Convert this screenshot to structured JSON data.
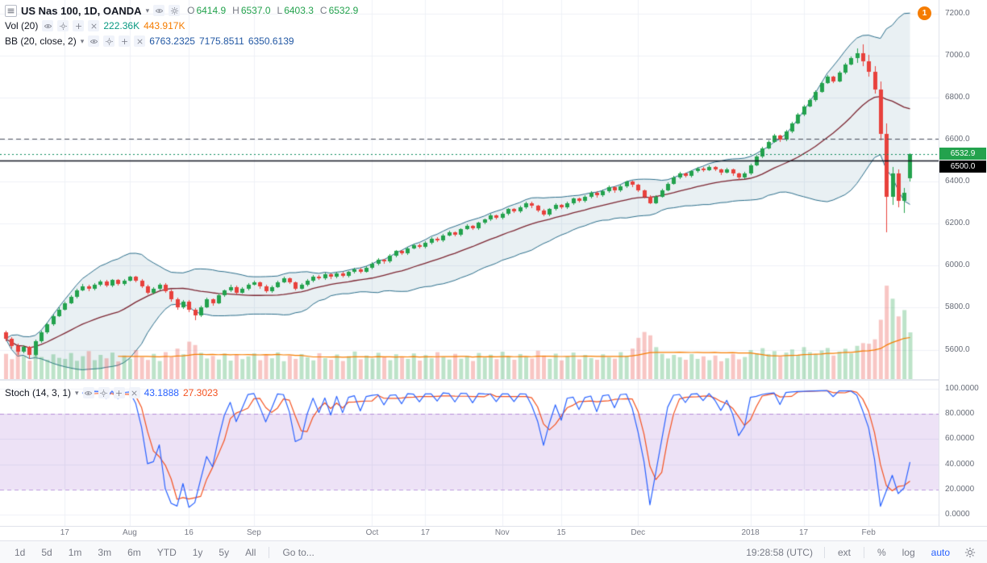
{
  "header": {
    "title": "US Nas 100, 1D, OANDA",
    "ohlc": {
      "o_label": "O",
      "o_value": "6414.9",
      "h_label": "H",
      "h_value": "6537.0",
      "l_label": "L",
      "l_value": "6403.3",
      "c_label": "C",
      "c_value": "6532.9"
    }
  },
  "volume_row": {
    "label": "Vol (20)",
    "value": "222.36K",
    "ma_value": "443.917K"
  },
  "bb_row": {
    "label": "BB (20, close, 2)",
    "basis": "6763.2325",
    "upper": "7175.8511",
    "lower": "6350.6139"
  },
  "stoch_row": {
    "label": "Stoch (14, 3, 1)",
    "k_value": "43.1888",
    "d_value": "27.3023"
  },
  "countdown_badge": "1",
  "price_axis": {
    "ticks": [
      "7200.0",
      "7000.0",
      "6800.0",
      "6600.0",
      "6400.0",
      "6200.0",
      "6000.0",
      "5800.0",
      "5600.0"
    ],
    "tick_values": [
      7200,
      7000,
      6800,
      6600,
      6400,
      6200,
      6000,
      5800,
      5600
    ],
    "last_price_badge": "6532.9",
    "price_line_badge": "6500.0"
  },
  "stoch_axis": {
    "ticks": [
      "100.0000",
      "80.0000",
      "60.0000",
      "40.0000",
      "20.0000",
      "0.0000"
    ],
    "tick_values": [
      100,
      80,
      60,
      40,
      20,
      0
    ]
  },
  "time_axis": {
    "labels": [
      {
        "text": "17",
        "i": 10
      },
      {
        "text": "Aug",
        "i": 21
      },
      {
        "text": "16",
        "i": 31
      },
      {
        "text": "Sep",
        "i": 42
      },
      {
        "text": "Oct",
        "i": 62
      },
      {
        "text": "17",
        "i": 71
      },
      {
        "text": "Nov",
        "i": 84
      },
      {
        "text": "15",
        "i": 94
      },
      {
        "text": "Dec",
        "i": 107
      },
      {
        "text": "2018",
        "i": 126
      },
      {
        "text": "17",
        "i": 135
      },
      {
        "text": "Feb",
        "i": 146
      }
    ]
  },
  "toolbar": {
    "ranges": [
      "1d",
      "5d",
      "1m",
      "3m",
      "6m",
      "YTD",
      "1y",
      "5y",
      "All"
    ],
    "goto": "Go to...",
    "clock": "19:28:58 (UTC)",
    "ext": "ext",
    "percent": "%",
    "log": "log",
    "auto": "auto"
  },
  "colors": {
    "up": "#23a24d",
    "down": "#e8413c",
    "up_fill": "rgba(35,162,77,0.30)",
    "down_fill": "rgba(232,65,60,0.30)",
    "bb_line": "#2a6d8a",
    "bb_fill": "rgba(42,109,138,0.10)",
    "bb_basis": "#7b2430",
    "bb_value": "#2157a3",
    "vol_value": "#089981",
    "vol_ma": "#f57c00",
    "stoch_k": "#2962ff",
    "stoch_d": "#f4511e",
    "stoch_band_fill": "rgba(143,77,196,0.16)",
    "stoch_band_line": "rgba(143,77,196,0.55)",
    "grid": "#eef1f6",
    "last_price_line": "#0b8a5a",
    "price_line_black": "#131722",
    "dashed_line_gray": "#50535e",
    "badge_black_bg": "#000000",
    "accent_blue": "#2962ff",
    "text_primary": "#131722",
    "text_secondary": "#787b86"
  },
  "chart_data": {
    "type": "candlestick",
    "title": "US Nas 100, 1D, OANDA",
    "symbol": "US Nas 100",
    "interval": "1D",
    "exchange": "OANDA",
    "ylim": [
      5460,
      7265
    ],
    "price_lines": {
      "black_line": 6500.0,
      "gray_dashed": 6605.0,
      "last_close": 6532.9
    },
    "ohlc": [
      [
        5682,
        5690,
        5640,
        5652
      ],
      [
        5652,
        5660,
        5606,
        5618
      ],
      [
        5618,
        5630,
        5578,
        5590
      ],
      [
        5590,
        5622,
        5582,
        5612
      ],
      [
        5612,
        5618,
        5558,
        5576
      ],
      [
        5576,
        5650,
        5570,
        5642
      ],
      [
        5642,
        5692,
        5636,
        5681
      ],
      [
        5681,
        5730,
        5675,
        5722
      ],
      [
        5722,
        5768,
        5716,
        5760
      ],
      [
        5760,
        5800,
        5752,
        5791
      ],
      [
        5791,
        5830,
        5786,
        5822
      ],
      [
        5822,
        5858,
        5816,
        5851
      ],
      [
        5851,
        5890,
        5845,
        5882
      ],
      [
        5882,
        5912,
        5876,
        5901
      ],
      [
        5901,
        5908,
        5878,
        5889
      ],
      [
        5889,
        5918,
        5883,
        5911
      ],
      [
        5911,
        5934,
        5905,
        5926
      ],
      [
        5926,
        5932,
        5896,
        5906
      ],
      [
        5906,
        5938,
        5900,
        5931
      ],
      [
        5931,
        5936,
        5906,
        5915
      ],
      [
        5915,
        5938,
        5909,
        5930
      ],
      [
        5930,
        5952,
        5924,
        5946
      ],
      [
        5946,
        5950,
        5920,
        5929
      ],
      [
        5929,
        5936,
        5892,
        5901
      ],
      [
        5901,
        5908,
        5860,
        5871
      ],
      [
        5871,
        5898,
        5864,
        5890
      ],
      [
        5890,
        5918,
        5884,
        5911
      ],
      [
        5911,
        5916,
        5870,
        5879
      ],
      [
        5879,
        5886,
        5830,
        5841
      ],
      [
        5841,
        5848,
        5790,
        5801
      ],
      [
        5801,
        5838,
        5795,
        5830
      ],
      [
        5830,
        5836,
        5780,
        5790
      ],
      [
        5790,
        5798,
        5742,
        5762
      ],
      [
        5762,
        5808,
        5756,
        5801
      ],
      [
        5801,
        5846,
        5795,
        5839
      ],
      [
        5839,
        5845,
        5810,
        5821
      ],
      [
        5821,
        5866,
        5815,
        5859
      ],
      [
        5859,
        5888,
        5853,
        5881
      ],
      [
        5881,
        5908,
        5875,
        5899
      ],
      [
        5899,
        5905,
        5862,
        5872
      ],
      [
        5872,
        5896,
        5866,
        5889
      ],
      [
        5889,
        5918,
        5883,
        5910
      ],
      [
        5910,
        5928,
        5904,
        5921
      ],
      [
        5921,
        5926,
        5892,
        5901
      ],
      [
        5901,
        5908,
        5870,
        5879
      ],
      [
        5879,
        5906,
        5873,
        5899
      ],
      [
        5899,
        5928,
        5893,
        5921
      ],
      [
        5921,
        5946,
        5915,
        5939
      ],
      [
        5939,
        5944,
        5912,
        5921
      ],
      [
        5921,
        5926,
        5882,
        5891
      ],
      [
        5891,
        5916,
        5885,
        5909
      ],
      [
        5909,
        5936,
        5903,
        5929
      ],
      [
        5929,
        5956,
        5923,
        5949
      ],
      [
        5949,
        5954,
        5930,
        5939
      ],
      [
        5939,
        5966,
        5933,
        5959
      ],
      [
        5959,
        5964,
        5936,
        5946
      ],
      [
        5946,
        5970,
        5940,
        5964
      ],
      [
        5964,
        5969,
        5942,
        5951
      ],
      [
        5951,
        5976,
        5945,
        5969
      ],
      [
        5969,
        5990,
        5963,
        5984
      ],
      [
        5984,
        5989,
        5962,
        5971
      ],
      [
        5971,
        5996,
        5965,
        5989
      ],
      [
        5989,
        6016,
        5983,
        6009
      ],
      [
        6009,
        6036,
        6003,
        6029
      ],
      [
        6029,
        6034,
        6010,
        6019
      ],
      [
        6019,
        6056,
        6013,
        6049
      ],
      [
        6049,
        6076,
        6043,
        6069
      ],
      [
        6069,
        6074,
        6050,
        6059
      ],
      [
        6059,
        6090,
        6053,
        6084
      ],
      [
        6084,
        6106,
        6078,
        6099
      ],
      [
        6099,
        6104,
        6080,
        6089
      ],
      [
        6089,
        6116,
        6083,
        6109
      ],
      [
        6109,
        6136,
        6103,
        6129
      ],
      [
        6129,
        6134,
        6110,
        6119
      ],
      [
        6119,
        6150,
        6113,
        6144
      ],
      [
        6144,
        6166,
        6138,
        6159
      ],
      [
        6159,
        6164,
        6140,
        6149
      ],
      [
        6149,
        6180,
        6143,
        6174
      ],
      [
        6174,
        6196,
        6168,
        6189
      ],
      [
        6189,
        6194,
        6170,
        6179
      ],
      [
        6179,
        6210,
        6173,
        6204
      ],
      [
        6204,
        6226,
        6198,
        6219
      ],
      [
        6219,
        6246,
        6213,
        6239
      ],
      [
        6239,
        6244,
        6220,
        6229
      ],
      [
        6229,
        6256,
        6223,
        6249
      ],
      [
        6249,
        6276,
        6243,
        6269
      ],
      [
        6269,
        6274,
        6250,
        6259
      ],
      [
        6259,
        6286,
        6253,
        6279
      ],
      [
        6279,
        6306,
        6273,
        6299
      ],
      [
        6299,
        6304,
        6275,
        6284
      ],
      [
        6284,
        6289,
        6255,
        6264
      ],
      [
        6264,
        6269,
        6235,
        6244
      ],
      [
        6244,
        6276,
        6238,
        6269
      ],
      [
        6269,
        6296,
        6263,
        6289
      ],
      [
        6289,
        6294,
        6270,
        6279
      ],
      [
        6279,
        6306,
        6273,
        6299
      ],
      [
        6299,
        6326,
        6293,
        6319
      ],
      [
        6319,
        6324,
        6300,
        6309
      ],
      [
        6309,
        6336,
        6303,
        6329
      ],
      [
        6329,
        6356,
        6323,
        6349
      ],
      [
        6349,
        6354,
        6325,
        6334
      ],
      [
        6334,
        6361,
        6328,
        6354
      ],
      [
        6354,
        6381,
        6348,
        6374
      ],
      [
        6374,
        6379,
        6350,
        6359
      ],
      [
        6359,
        6386,
        6353,
        6379
      ],
      [
        6379,
        6406,
        6373,
        6399
      ],
      [
        6399,
        6404,
        6375,
        6384
      ],
      [
        6384,
        6389,
        6350,
        6359
      ],
      [
        6359,
        6364,
        6320,
        6329
      ],
      [
        6329,
        6334,
        6290,
        6299
      ],
      [
        6299,
        6336,
        6293,
        6329
      ],
      [
        6329,
        6366,
        6323,
        6359
      ],
      [
        6359,
        6396,
        6353,
        6389
      ],
      [
        6389,
        6426,
        6383,
        6419
      ],
      [
        6419,
        6446,
        6413,
        6439
      ],
      [
        6439,
        6444,
        6420,
        6429
      ],
      [
        6429,
        6456,
        6423,
        6449
      ],
      [
        6449,
        6471,
        6443,
        6464
      ],
      [
        6464,
        6469,
        6445,
        6454
      ],
      [
        6454,
        6476,
        6448,
        6469
      ],
      [
        6469,
        6474,
        6450,
        6459
      ],
      [
        6459,
        6464,
        6435,
        6444
      ],
      [
        6444,
        6466,
        6438,
        6459
      ],
      [
        6459,
        6464,
        6430,
        6439
      ],
      [
        6439,
        6444,
        6410,
        6419
      ],
      [
        6419,
        6446,
        6413,
        6439
      ],
      [
        6439,
        6486,
        6433,
        6479
      ],
      [
        6479,
        6526,
        6473,
        6519
      ],
      [
        6519,
        6566,
        6513,
        6559
      ],
      [
        6559,
        6596,
        6553,
        6589
      ],
      [
        6589,
        6626,
        6583,
        6619
      ],
      [
        6619,
        6624,
        6590,
        6599
      ],
      [
        6599,
        6646,
        6593,
        6639
      ],
      [
        6639,
        6686,
        6633,
        6679
      ],
      [
        6679,
        6726,
        6673,
        6719
      ],
      [
        6719,
        6766,
        6713,
        6759
      ],
      [
        6759,
        6796,
        6753,
        6789
      ],
      [
        6789,
        6836,
        6783,
        6829
      ],
      [
        6829,
        6876,
        6823,
        6869
      ],
      [
        6869,
        6906,
        6863,
        6899
      ],
      [
        6899,
        6904,
        6870,
        6879
      ],
      [
        6879,
        6926,
        6873,
        6919
      ],
      [
        6919,
        6966,
        6913,
        6959
      ],
      [
        6959,
        6996,
        6953,
        6989
      ],
      [
        6989,
        7035,
        6965,
        7012
      ],
      [
        7012,
        7052,
        6950,
        6972
      ],
      [
        6972,
        7002,
        6900,
        6922
      ],
      [
        6922,
        6950,
        6819,
        6839
      ],
      [
        6839,
        6879,
        6599,
        6629
      ],
      [
        6629,
        6679,
        6160,
        6329
      ],
      [
        6329,
        6469,
        6289,
        6439
      ],
      [
        6439,
        6459,
        6279,
        6309
      ],
      [
        6309,
        6369,
        6249,
        6349
      ],
      [
        6414.9,
        6537.0,
        6403.3,
        6532.9
      ]
    ],
    "volumes_k": [
      120,
      95,
      140,
      110,
      88,
      132,
      105,
      92,
      118,
      101,
      96,
      124,
      87,
      109,
      133,
      90,
      115,
      99,
      126,
      84,
      112,
      97,
      138,
      104,
      91,
      120,
      86,
      128,
      107,
      145,
      118,
      178,
      162,
      125,
      98,
      110,
      93,
      121,
      88,
      116,
      95,
      108,
      122,
      90,
      114,
      99,
      127,
      85,
      111,
      96,
      119,
      104,
      89,
      123,
      100,
      92,
      117,
      86,
      109,
      131,
      94,
      112,
      98,
      125,
      107,
      90,
      118,
      103,
      96,
      122,
      88,
      114,
      99,
      128,
      105,
      93,
      120,
      97,
      110,
      86,
      124,
      102,
      116,
      95,
      130,
      108,
      92,
      119,
      104,
      98,
      135,
      112,
      96,
      121,
      89,
      107,
      126,
      94,
      115,
      100,
      92,
      118,
      103,
      97,
      128,
      110,
      145,
      196,
      224,
      208,
      152,
      120,
      98,
      115,
      104,
      92,
      119,
      96,
      108,
      90,
      112,
      85,
      99,
      120,
      94,
      105,
      138,
      122,
      147,
      119,
      133,
      108,
      126,
      141,
      115,
      152,
      128,
      119,
      136,
      148,
      112,
      131,
      144,
      122,
      158,
      171,
      168,
      189,
      282,
      444,
      382,
      298,
      328,
      222
    ],
    "indicators": [
      {
        "name": "BB",
        "params": "20, close, 2",
        "basis": 6763.2325,
        "upper": 7175.8511,
        "lower": 6350.6139
      },
      {
        "name": "Volume MA",
        "value_k": 443.917,
        "last_volume_k": 222.36
      },
      {
        "name": "Stoch",
        "params": "14, 3, 1",
        "k": 43.1888,
        "d": 27.3023,
        "band": [
          20,
          80
        ],
        "ylim": [
          0,
          100
        ]
      }
    ]
  }
}
